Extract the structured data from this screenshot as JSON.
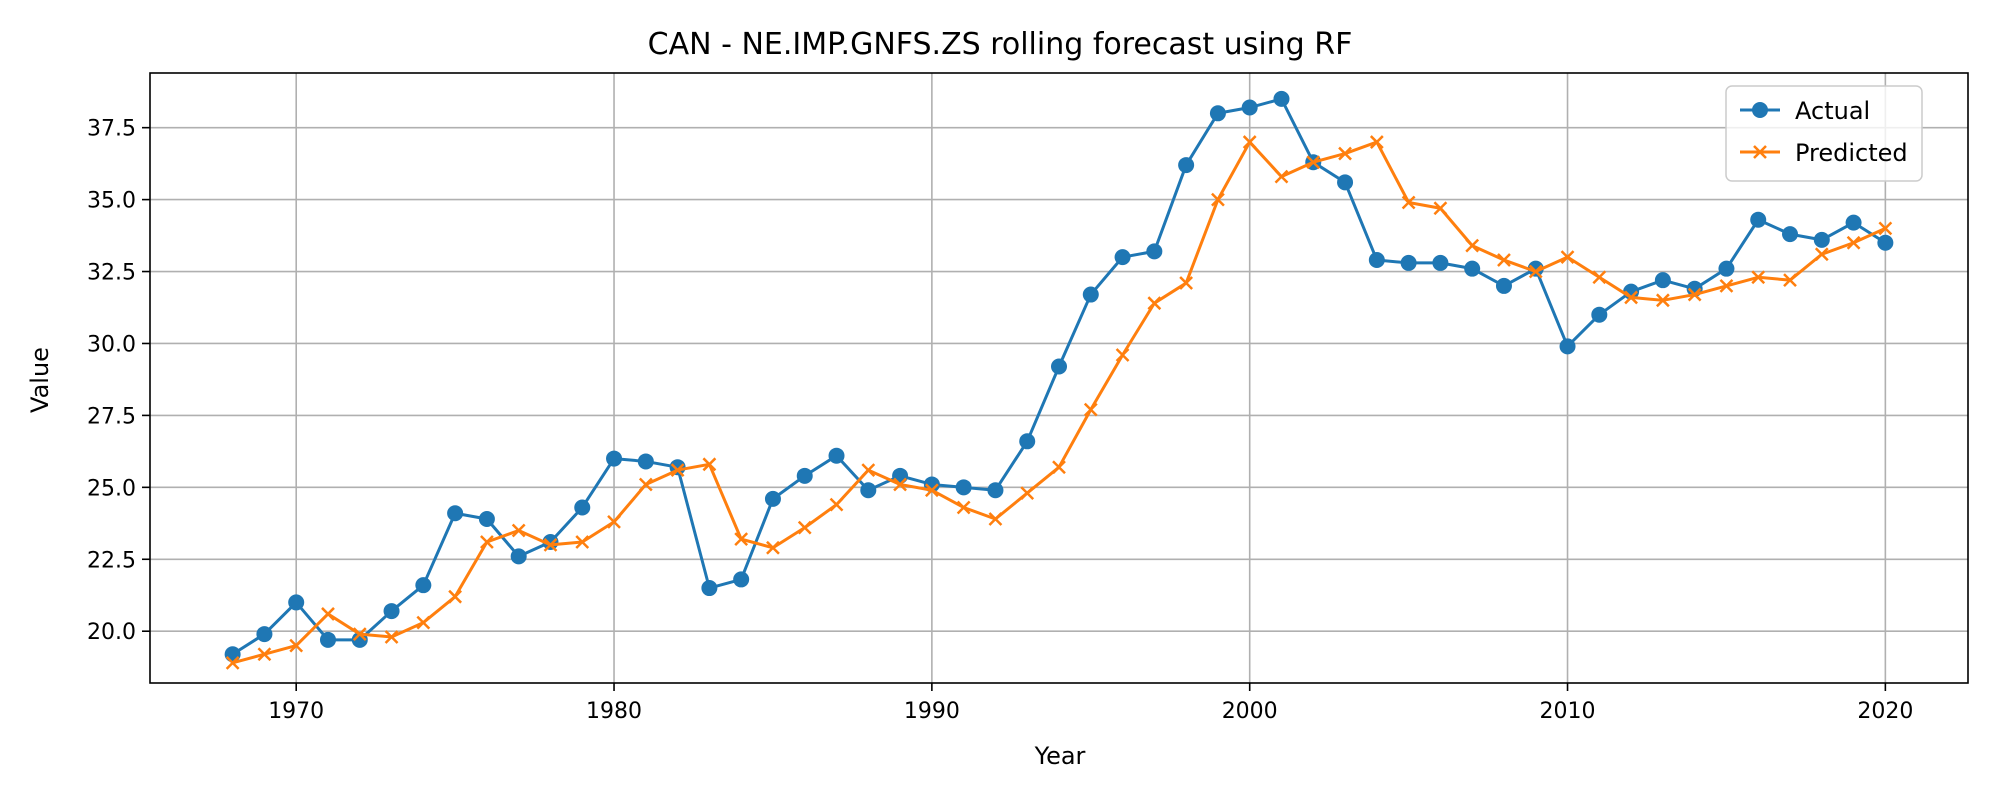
{
  "chart_data": {
    "type": "line",
    "title": "CAN - NE.IMP.GNFS.ZS rolling forecast using RF",
    "xlabel": "Year",
    "ylabel": "Value",
    "xlim": [
      1965.4,
      2022.6
    ],
    "ylim": [
      18.2,
      39.4
    ],
    "xticks": [
      1970,
      1980,
      1990,
      2000,
      2010,
      2020
    ],
    "yticks": [
      20.0,
      22.5,
      25.0,
      27.5,
      30.0,
      32.5,
      35.0,
      37.5
    ],
    "xtick_labels": [
      "1970",
      "1980",
      "1990",
      "2000",
      "2010",
      "2020"
    ],
    "ytick_labels": [
      "20.0",
      "22.5",
      "25.0",
      "27.5",
      "30.0",
      "32.5",
      "35.0",
      "37.5"
    ],
    "grid": true,
    "legend_position": "top-right",
    "x": [
      1968,
      1969,
      1970,
      1971,
      1972,
      1973,
      1974,
      1975,
      1976,
      1977,
      1978,
      1979,
      1980,
      1981,
      1982,
      1983,
      1984,
      1985,
      1986,
      1987,
      1988,
      1989,
      1990,
      1991,
      1992,
      1993,
      1994,
      1995,
      1996,
      1997,
      1998,
      1999,
      2000,
      2001,
      2002,
      2003,
      2004,
      2005,
      2006,
      2007,
      2008,
      2009,
      2010,
      2011,
      2012,
      2013,
      2014,
      2015,
      2016,
      2017,
      2018,
      2019,
      2020
    ],
    "series": [
      {
        "name": "Actual",
        "color": "#1f77b4",
        "marker": "circle",
        "values": [
          19.2,
          19.9,
          21.0,
          19.7,
          19.7,
          20.7,
          21.6,
          24.1,
          23.9,
          22.6,
          23.1,
          24.3,
          26.0,
          25.9,
          25.7,
          21.5,
          21.8,
          24.6,
          25.4,
          26.1,
          24.9,
          25.4,
          25.1,
          25.0,
          24.9,
          26.6,
          29.2,
          31.7,
          33.0,
          33.2,
          36.2,
          38.0,
          38.2,
          38.5,
          36.3,
          35.6,
          32.9,
          32.8,
          32.8,
          32.6,
          32.0,
          32.6,
          29.9,
          31.0,
          31.8,
          32.2,
          31.9,
          32.6,
          34.3,
          33.8,
          33.6,
          34.2,
          33.5
        ]
      },
      {
        "name": "Predicted",
        "color": "#ff7f0e",
        "marker": "x",
        "values": [
          18.9,
          19.2,
          19.5,
          20.6,
          19.9,
          19.8,
          20.3,
          21.2,
          23.1,
          23.5,
          23.0,
          23.1,
          23.8,
          25.1,
          25.6,
          25.8,
          23.2,
          22.9,
          23.6,
          24.4,
          25.6,
          25.1,
          24.9,
          24.3,
          23.9,
          24.8,
          25.7,
          27.7,
          29.6,
          31.4,
          32.1,
          35.0,
          37.0,
          35.8,
          36.3,
          36.6,
          37.0,
          34.9,
          34.7,
          33.4,
          32.9,
          32.5,
          33.0,
          32.3,
          31.6,
          31.5,
          31.7,
          32.0,
          32.3,
          32.2,
          33.1,
          33.5,
          34.0
        ]
      }
    ]
  }
}
